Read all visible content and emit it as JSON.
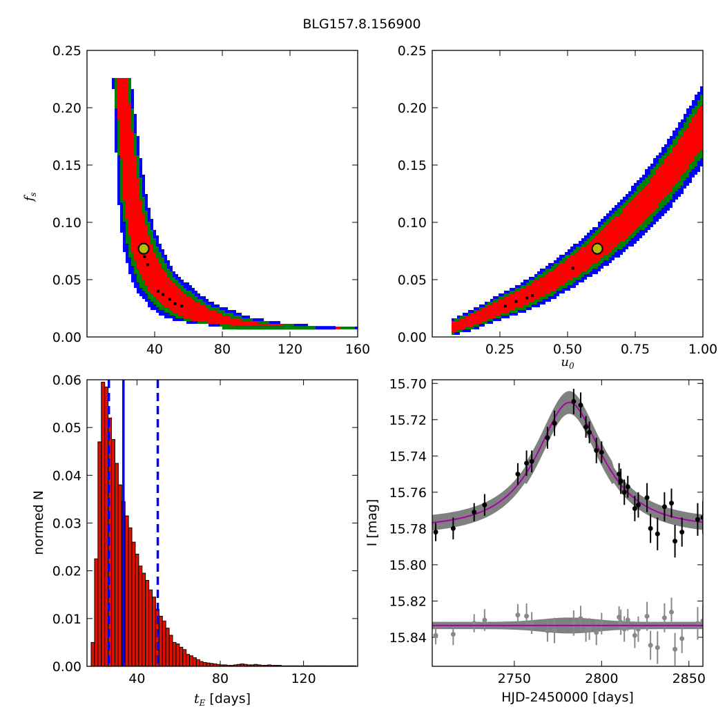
{
  "figure_title": "BLG157.8.156900",
  "chart_data": [
    {
      "id": "fs_vs_tE",
      "type": "heatmap",
      "xlabel": "",
      "ylabel_main": "f",
      "ylabel_sub": "s",
      "xlim": [
        0,
        160
      ],
      "ylim": [
        0,
        0.25
      ],
      "xticks": [
        40,
        80,
        120,
        160
      ],
      "yticks": [
        0.0,
        0.05,
        0.1,
        0.15,
        0.2,
        0.25
      ],
      "ytick_labels": [
        "0.00",
        "0.05",
        "0.10",
        "0.15",
        "0.20",
        "0.25"
      ],
      "levels": [
        {
          "name": "3-sigma",
          "color": "#0000ff",
          "width_scale": 1.9
        },
        {
          "name": "2-sigma",
          "color": "#008000",
          "width_scale": 1.45
        },
        {
          "name": "1-sigma",
          "color": "#ff0000",
          "width_scale": 1.0
        }
      ],
      "ridge": [
        [
          21,
          0.22
        ],
        [
          23,
          0.18
        ],
        [
          25,
          0.15
        ],
        [
          27,
          0.12
        ],
        [
          30,
          0.095
        ],
        [
          33,
          0.077
        ],
        [
          38,
          0.058
        ],
        [
          45,
          0.043
        ],
        [
          52,
          0.033
        ],
        [
          60,
          0.025
        ],
        [
          70,
          0.018
        ],
        [
          80,
          0.014
        ],
        [
          95,
          0.011
        ],
        [
          110,
          0.009
        ],
        [
          125,
          0.008
        ],
        [
          135,
          0.008
        ]
      ],
      "ridge_halfwidth": [
        [
          0.22,
          2.5
        ],
        [
          0.15,
          3.5
        ],
        [
          0.1,
          4.5
        ],
        [
          0.06,
          6.5
        ],
        [
          0.03,
          10
        ],
        [
          0.01,
          15
        ]
      ],
      "best_fit": {
        "x": 33.5,
        "y": 0.077,
        "color": "#b5bd00"
      }
    },
    {
      "id": "fs_vs_u0",
      "type": "heatmap",
      "xlabel_main": "u",
      "xlabel_sub": "0",
      "xlim": [
        0,
        1.0
      ],
      "ylim": [
        0,
        0.25
      ],
      "xticks": [
        0.25,
        0.5,
        0.75,
        1.0
      ],
      "xtick_labels": [
        "0.25",
        "0.50",
        "0.75",
        "1.00"
      ],
      "yticks": [
        0.0,
        0.05,
        0.1,
        0.15,
        0.2,
        0.25
      ],
      "ytick_labels": [
        "0.00",
        "0.05",
        "0.10",
        "0.15",
        "0.20",
        "0.25"
      ],
      "levels": [
        {
          "name": "3-sigma",
          "color": "#0000ff",
          "width_scale": 1.9
        },
        {
          "name": "2-sigma",
          "color": "#008000",
          "width_scale": 1.45
        },
        {
          "name": "1-sigma",
          "color": "#ff0000",
          "width_scale": 1.0
        }
      ],
      "ridge": [
        [
          0.07,
          0.008
        ],
        [
          0.15,
          0.015
        ],
        [
          0.25,
          0.026
        ],
        [
          0.35,
          0.036
        ],
        [
          0.45,
          0.05
        ],
        [
          0.55,
          0.066
        ],
        [
          0.61,
          0.077
        ],
        [
          0.7,
          0.096
        ],
        [
          0.8,
          0.12
        ],
        [
          0.9,
          0.15
        ],
        [
          1.0,
          0.185
        ]
      ],
      "ridge_halfwidth_y": [
        [
          0.07,
          0.003
        ],
        [
          0.3,
          0.006
        ],
        [
          0.6,
          0.01
        ],
        [
          0.8,
          0.014
        ],
        [
          1.0,
          0.018
        ]
      ],
      "best_fit": {
        "x": 0.61,
        "y": 0.077,
        "color": "#b5bd00"
      }
    },
    {
      "id": "tE_histogram",
      "type": "bar",
      "xlabel_main": "t",
      "xlabel_sub": "E",
      "xlabel_rest": " [days]",
      "ylabel": "normed N",
      "xlim": [
        16,
        146
      ],
      "ylim": [
        0,
        0.06
      ],
      "xticks": [
        40,
        80,
        120
      ],
      "yticks": [
        0.0,
        0.01,
        0.02,
        0.03,
        0.04,
        0.05,
        0.06
      ],
      "ytick_labels": [
        "0.00",
        "0.01",
        "0.02",
        "0.03",
        "0.04",
        "0.05",
        "0.06"
      ],
      "bin_start": 18,
      "bin_width": 1.63,
      "values": [
        0.005,
        0.0225,
        0.047,
        0.0595,
        0.0585,
        0.052,
        0.0475,
        0.0425,
        0.038,
        0.0345,
        0.0315,
        0.029,
        0.026,
        0.0235,
        0.021,
        0.0195,
        0.018,
        0.016,
        0.0145,
        0.012,
        0.0105,
        0.0095,
        0.008,
        0.0065,
        0.005,
        0.0047,
        0.004,
        0.0035,
        0.0025,
        0.0022,
        0.0018,
        0.0014,
        0.001,
        0.0008,
        0.0007,
        0.0006,
        0.0005,
        0.0004,
        0.0003,
        0.0003,
        0.0002,
        0.0002,
        0.0003,
        0.0004,
        0.0005,
        0.0004,
        0.0003,
        0.0003,
        0.0004,
        0.0003,
        0.0002,
        0.0002,
        0.0003,
        0.0002,
        0.0002,
        0.0002,
        0.0001,
        0.0001,
        0.0001,
        0.0001,
        0.0001,
        0.0001,
        0.0001,
        0.0001,
        0.0001,
        0.0001,
        0.0001,
        0.0001,
        0.0001,
        0.0001,
        0.0001,
        0.0001,
        0.0001,
        0.0001,
        0.0001,
        0.0001,
        0.0001,
        0.0001
      ],
      "bar_color": "#dd1100",
      "vlines": [
        {
          "x": 26.5,
          "style": "dashed",
          "color": "#0000ff"
        },
        {
          "x": 33.5,
          "style": "solid",
          "color": "#0000ff"
        },
        {
          "x": 50.0,
          "style": "dashed",
          "color": "#0000ff"
        }
      ]
    },
    {
      "id": "light_curve",
      "type": "scatter",
      "xlabel": "HJD-2450000 [days]",
      "ylabel": "I [mag]",
      "xlim": [
        2703,
        2858
      ],
      "ylim": [
        15.856,
        15.698
      ],
      "y_inverted": true,
      "xticks": [
        2750,
        2800,
        2850
      ],
      "yticks": [
        15.7,
        15.72,
        15.74,
        15.76,
        15.78,
        15.8,
        15.82,
        15.84
      ],
      "ytick_labels": [
        "15.70",
        "15.72",
        "15.74",
        "15.76",
        "15.78",
        "15.80",
        "15.82",
        "15.84"
      ],
      "model": {
        "baseline": 15.7795,
        "peak_mag": 15.7105,
        "t0": 2781.5,
        "tE": 33.5,
        "u0": 0.61,
        "color": "#aa00aa"
      },
      "model_band_halfwidth": 0.0045,
      "residual_offset": 15.8335,
      "residual_band_halfwidth": 0.002,
      "observations": [
        {
          "t": 2705,
          "mag": 15.782,
          "err": 0.005
        },
        {
          "t": 2715,
          "mag": 15.78,
          "err": 0.006
        },
        {
          "t": 2727,
          "mag": 15.771,
          "err": 0.005
        },
        {
          "t": 2733,
          "mag": 15.767,
          "err": 0.006
        },
        {
          "t": 2752,
          "mag": 15.75,
          "err": 0.006
        },
        {
          "t": 2757,
          "mag": 15.744,
          "err": 0.007
        },
        {
          "t": 2760,
          "mag": 15.743,
          "err": 0.006
        },
        {
          "t": 2769,
          "mag": 15.73,
          "err": 0.006
        },
        {
          "t": 2773,
          "mag": 15.722,
          "err": 0.007
        },
        {
          "t": 2784,
          "mag": 15.71,
          "err": 0.007
        },
        {
          "t": 2788,
          "mag": 15.712,
          "err": 0.007
        },
        {
          "t": 2791,
          "mag": 15.724,
          "err": 0.006
        },
        {
          "t": 2793,
          "mag": 15.727,
          "err": 0.006
        },
        {
          "t": 2797,
          "mag": 15.737,
          "err": 0.007
        },
        {
          "t": 2800,
          "mag": 15.738,
          "err": 0.006
        },
        {
          "t": 2810,
          "mag": 15.75,
          "err": 0.006
        },
        {
          "t": 2811,
          "mag": 15.754,
          "err": 0.007
        },
        {
          "t": 2813,
          "mag": 15.76,
          "err": 0.007
        },
        {
          "t": 2815,
          "mag": 15.757,
          "err": 0.006
        },
        {
          "t": 2819,
          "mag": 15.769,
          "err": 0.007
        },
        {
          "t": 2821,
          "mag": 15.767,
          "err": 0.007
        },
        {
          "t": 2826,
          "mag": 15.763,
          "err": 0.008
        },
        {
          "t": 2828,
          "mag": 15.78,
          "err": 0.008
        },
        {
          "t": 2832,
          "mag": 15.783,
          "err": 0.009
        },
        {
          "t": 2836,
          "mag": 15.768,
          "err": 0.008
        },
        {
          "t": 2840,
          "mag": 15.766,
          "err": 0.008
        },
        {
          "t": 2842,
          "mag": 15.787,
          "err": 0.009
        },
        {
          "t": 2846,
          "mag": 15.782,
          "err": 0.008
        },
        {
          "t": 2855,
          "mag": 15.775,
          "err": 0.009
        },
        {
          "t": 2858,
          "mag": 15.774,
          "err": 0.009
        }
      ],
      "point_color": "#000000",
      "residual_color": "#888888"
    }
  ]
}
